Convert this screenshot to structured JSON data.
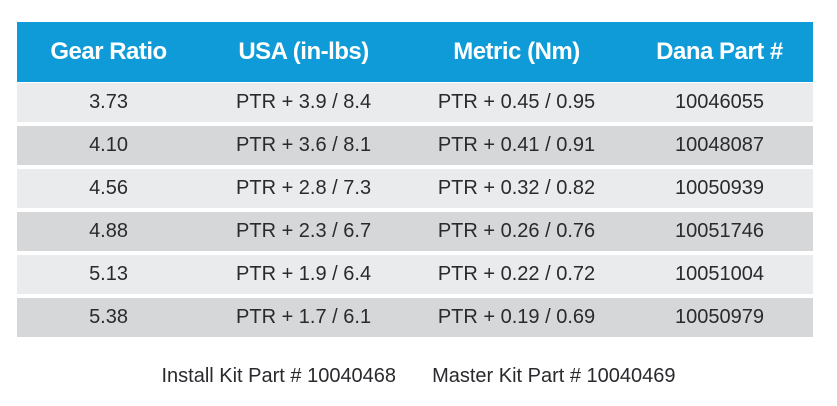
{
  "table": {
    "columns": [
      "Gear Ratio",
      "USA (in-lbs)",
      "Metric (Nm)",
      "Dana Part #"
    ],
    "rows": [
      {
        "gear_ratio": "3.73",
        "usa": "PTR + 3.9 / 8.4",
        "metric": "PTR + 0.45 / 0.95",
        "dana_part": "10046055"
      },
      {
        "gear_ratio": "4.10",
        "usa": "PTR + 3.6 / 8.1",
        "metric": "PTR + 0.41 / 0.91",
        "dana_part": "10048087"
      },
      {
        "gear_ratio": "4.56",
        "usa": "PTR + 2.8 / 7.3",
        "metric": "PTR + 0.32 / 0.82",
        "dana_part": "10050939"
      },
      {
        "gear_ratio": "4.88",
        "usa": "PTR + 2.3 / 6.7",
        "metric": "PTR + 0.26 / 0.76",
        "dana_part": "10051746"
      },
      {
        "gear_ratio": "5.13",
        "usa": "PTR + 1.9 / 6.4",
        "metric": "PTR + 0.22 / 0.72",
        "dana_part": "10051004"
      },
      {
        "gear_ratio": "5.38",
        "usa": "PTR + 1.7 / 6.1",
        "metric": "PTR + 0.19 / 0.69",
        "dana_part": "10050979"
      }
    ]
  },
  "footer": {
    "install_kit": "Install Kit Part # 10040468",
    "master_kit": "Master Kit Part # 10040469"
  },
  "colors": {
    "header_bg": "#0e9bd8",
    "header_text": "#ffffff",
    "row_light": "#eaebec",
    "row_dark": "#d6d7d9",
    "text": "#2a2a2e"
  }
}
